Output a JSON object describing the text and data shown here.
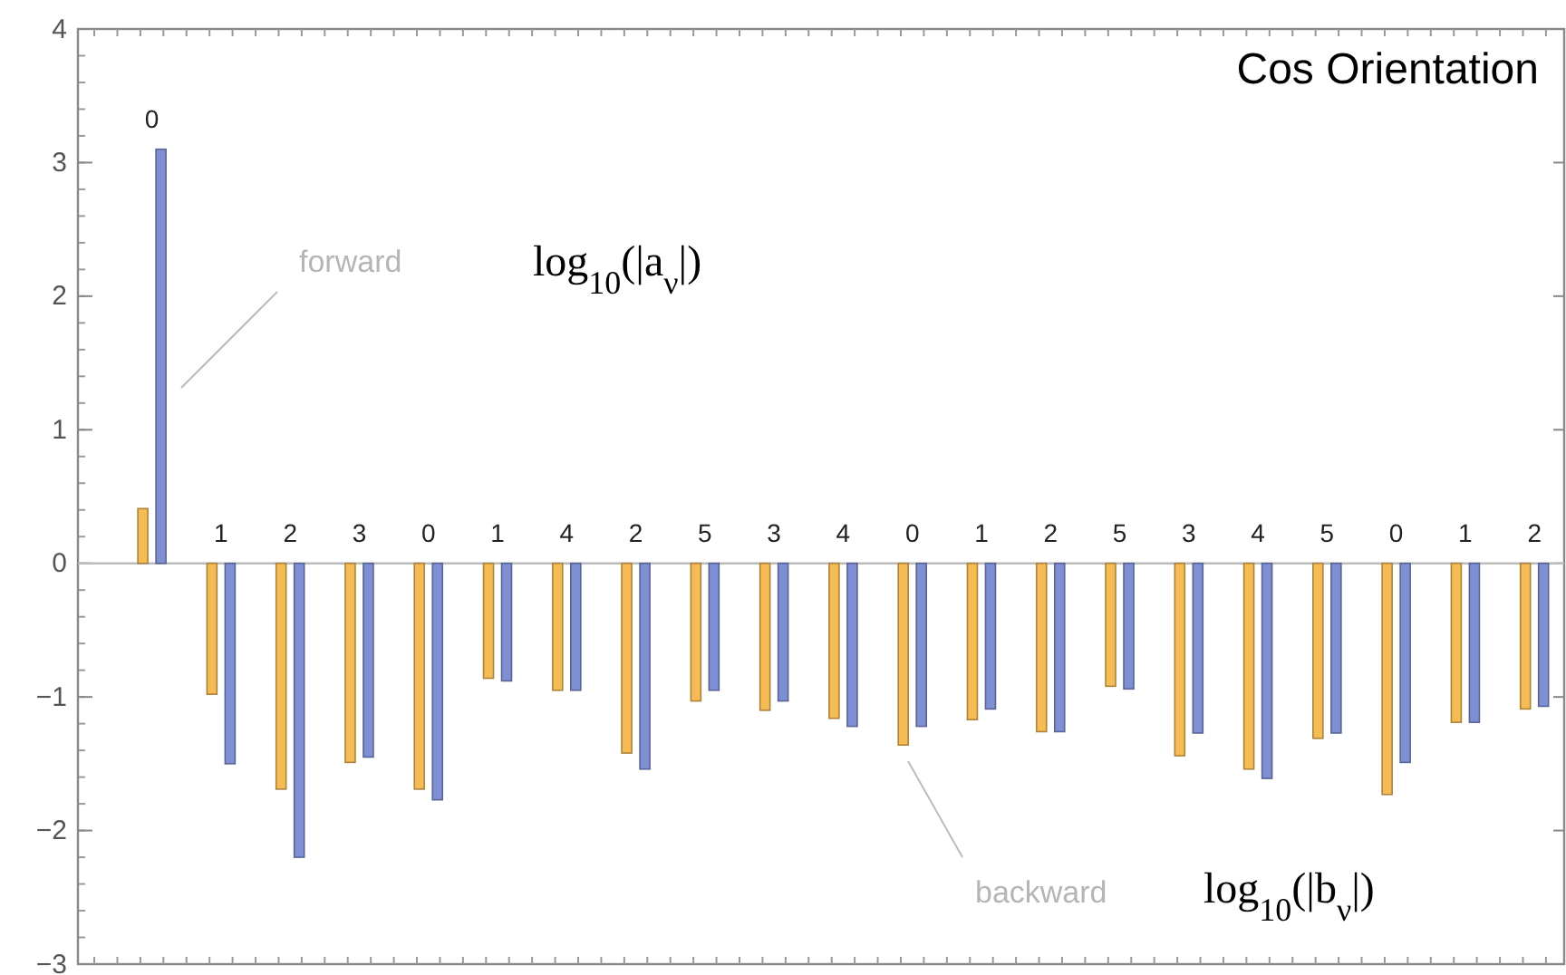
{
  "chart_data": {
    "type": "bar",
    "title": "Cos Orientation",
    "categories": [
      "0",
      "1",
      "2",
      "3",
      "0",
      "1",
      "4",
      "2",
      "5",
      "3",
      "4",
      "0",
      "1",
      "2",
      "5",
      "3",
      "4",
      "5",
      "0",
      "1",
      "2"
    ],
    "series": [
      {
        "color": "#f5bb55",
        "values": [
          0.41,
          -0.98,
          -1.69,
          -1.49,
          -1.69,
          -0.86,
          -0.95,
          -1.42,
          -1.03,
          -1.1,
          -1.16,
          -1.36,
          -1.17,
          -1.26,
          -0.92,
          -1.44,
          -1.54,
          -1.31,
          -1.73,
          -1.19,
          -1.09
        ]
      },
      {
        "color": "#7f8fd3",
        "values": [
          3.1,
          -1.5,
          -2.2,
          -1.45,
          -1.77,
          -0.88,
          -0.95,
          -1.54,
          -0.95,
          -1.03,
          -1.22,
          -1.22,
          -1.09,
          -1.26,
          -0.94,
          -1.27,
          -1.61,
          -1.27,
          -1.49,
          -1.19,
          -1.07
        ]
      }
    ],
    "ylim": [
      -3,
      4
    ],
    "yticks": [
      -3,
      -2,
      -1,
      0,
      1,
      2,
      3,
      4
    ],
    "annotations": [
      "forward",
      "log$_{10}$(|a$_{ν}$|)",
      "backward",
      "log$_{10}$(|b$_{ν}$|)"
    ],
    "grid": false
  }
}
